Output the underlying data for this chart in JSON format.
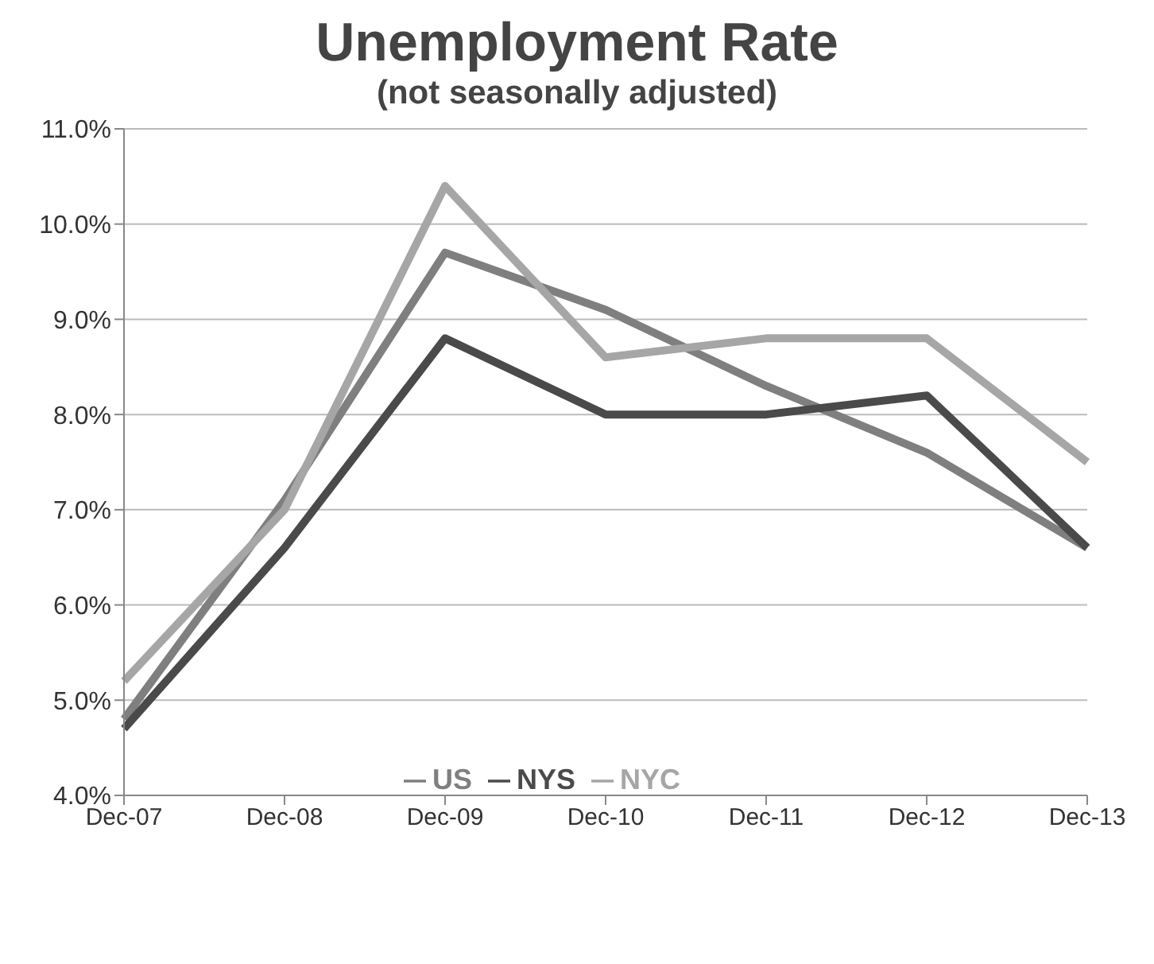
{
  "chart_data": {
    "type": "line",
    "title": "Unemployment Rate",
    "subtitle": "(not seasonally adjusted)",
    "categories": [
      "Dec-07",
      "Dec-08",
      "Dec-09",
      "Dec-10",
      "Dec-11",
      "Dec-12",
      "Dec-13"
    ],
    "series": [
      {
        "name": "US",
        "color": "#7f7f7f",
        "values": [
          4.8,
          7.1,
          9.7,
          9.1,
          8.3,
          7.6,
          6.6
        ]
      },
      {
        "name": "NYS",
        "color": "#4a4a4a",
        "values": [
          4.7,
          6.6,
          8.8,
          8.0,
          8.0,
          8.2,
          6.6
        ]
      },
      {
        "name": "NYC",
        "color": "#a6a6a6",
        "values": [
          5.2,
          7.0,
          10.4,
          8.6,
          8.8,
          8.8,
          7.5
        ]
      }
    ],
    "ylim": [
      4,
      11
    ],
    "yticks": [
      {
        "value": 4,
        "label": "4.0%"
      },
      {
        "value": 5,
        "label": "5.0%"
      },
      {
        "value": 6,
        "label": "6.0%"
      },
      {
        "value": 7,
        "label": "7.0%"
      },
      {
        "value": 8,
        "label": "8.0%"
      },
      {
        "value": 9,
        "label": "9.0%"
      },
      {
        "value": 10,
        "label": "10.0%"
      },
      {
        "value": 11,
        "label": "11.0%"
      }
    ],
    "grid": "y",
    "legend": "bottom",
    "marker": "none",
    "line_style": "solid"
  }
}
